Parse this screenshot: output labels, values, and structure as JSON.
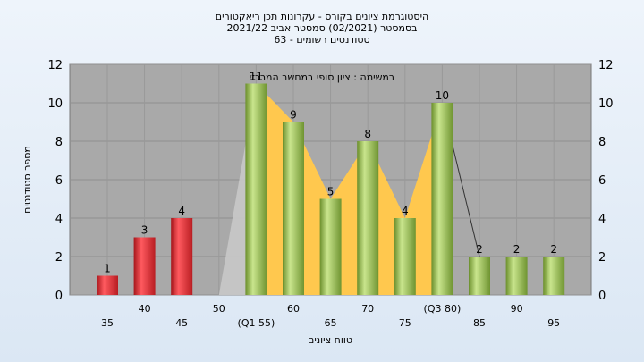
{
  "chart_data": {
    "type": "bar",
    "title_lines": [
      "היסטוגרמת ציונים בקורס - עקרונות תכן ריאקטורים",
      "בסמסטר  (02/2021)  סמסטר אביב 2021/22",
      "סטודנטים רשומים - 63"
    ],
    "subtitle": "במשימה : ציון סופי במחשב המרכזי",
    "ylabel": "מספר סטודנטים",
    "xlabel": "טווח ציונים",
    "ylim": [
      0,
      12
    ],
    "yticks": [
      0,
      2,
      4,
      6,
      8,
      10,
      12
    ],
    "categories": [
      "35",
      "40",
      "45",
      "50",
      "(Q1 55)",
      "60",
      "65",
      "70",
      "75",
      "(Q3 80)",
      "85",
      "90",
      "95"
    ],
    "values": [
      1,
      3,
      4,
      0,
      11,
      9,
      5,
      8,
      4,
      10,
      2,
      2,
      2
    ],
    "bar_colors": [
      "red",
      "red",
      "red",
      "red",
      "green",
      "green",
      "green",
      "green",
      "green",
      "green",
      "green",
      "green",
      "green"
    ],
    "quartile_band": {
      "from": "(Q1 55)",
      "to": "(Q3 80)",
      "color": "#ffc84e"
    },
    "grid": true,
    "colors": {
      "plot_bg": "#a9a9a9",
      "red_bar": "#e8333a",
      "green_bar": "#9cc45a",
      "band": "#ffc84e",
      "tail": "#c8c8c8"
    }
  }
}
